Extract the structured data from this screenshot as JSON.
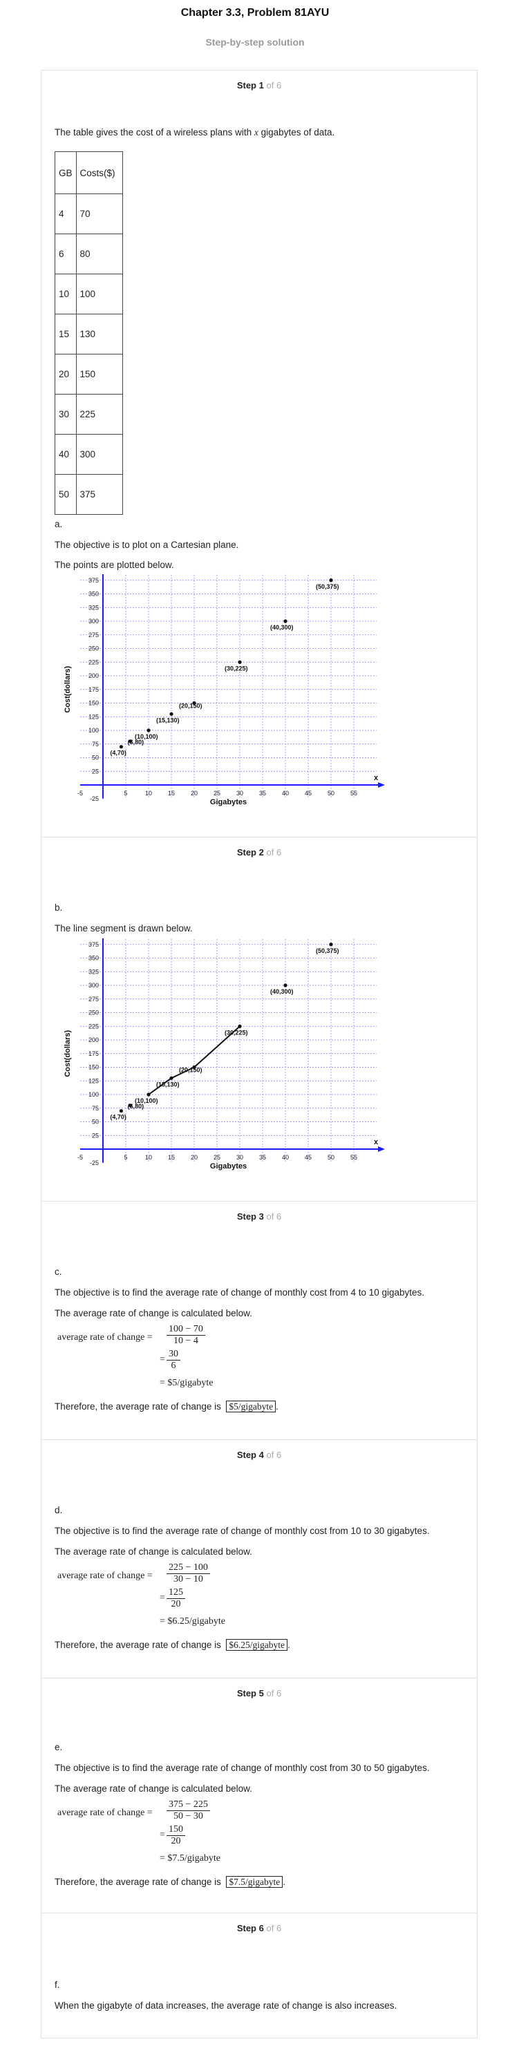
{
  "header": {
    "title": "Chapter 3.3, Problem 81AYU",
    "subtitle": "Step-by-step solution"
  },
  "step_word": "Step",
  "of_text": "of 6",
  "steps": [
    {
      "number": "1",
      "intro_pre": "The table gives the cost of a wireless plans with ",
      "intro_var": "x",
      "intro_post": " gigabytes of data.",
      "table_headers": [
        "GB",
        "Costs($)"
      ],
      "table_rows": [
        [
          "4",
          "70"
        ],
        [
          "6",
          "80"
        ],
        [
          "10",
          "100"
        ],
        [
          "15",
          "130"
        ],
        [
          "20",
          "150"
        ],
        [
          "30",
          "225"
        ],
        [
          "40",
          "300"
        ],
        [
          "50",
          "375"
        ]
      ],
      "label": "a.",
      "line1": "The objective is to plot on a Cartesian plane.",
      "line2": "The points are plotted below."
    },
    {
      "number": "2",
      "label": "b.",
      "line1": "The line segment is drawn below."
    },
    {
      "number": "3",
      "label": "c.",
      "line1": "The objective is to find the average rate of change of monthly cost from 4 to 10 gigabytes.",
      "line2": "The average rate of change is calculated below.",
      "lhs": "average rate of change =",
      "frac1_num": "100 − 70",
      "frac1_den": "10 − 4",
      "frac2_num": "30",
      "frac2_den": "6",
      "result": "= $5/gigabyte",
      "conclusion": "Therefore, the average rate of change is",
      "answer": "$5/gigabyte"
    },
    {
      "number": "4",
      "label": "d.",
      "line1": "The objective is to find the average rate of change of monthly cost from 10 to 30 gigabytes.",
      "line2": "The average rate of change is calculated below.",
      "lhs": "average rate of change =",
      "frac1_num": "225 − 100",
      "frac1_den": "30 − 10",
      "frac2_num": "125",
      "frac2_den": "20",
      "result": "= $6.25/gigabyte",
      "conclusion": "Therefore, the average rate of change is",
      "answer": "$6.25/gigabyte"
    },
    {
      "number": "5",
      "label": "e.",
      "line1": "The objective is to find the average rate of change of monthly cost from 30 to 50 gigabytes.",
      "line2": "The average rate of change is calculated below.",
      "lhs": "average rate of change =",
      "frac1_num": "375 − 225",
      "frac1_den": "50 − 30",
      "frac2_num": "150",
      "frac2_den": "20",
      "result": "= $7.5/gigabyte",
      "conclusion": "Therefore, the average rate of change is",
      "answer": "$7.5/gigabyte"
    },
    {
      "number": "6",
      "label": "f.",
      "line1": "When the gigabyte of data increases, the average rate of change is also increases."
    }
  ],
  "chart_data": [
    {
      "type": "scatter",
      "xlabel": "Gigabytes",
      "ylabel": "Cost(dollars)",
      "x_axis_name": "x",
      "y_axis_name": "y",
      "xlim": [
        -5,
        60
      ],
      "ylim": [
        -25,
        390
      ],
      "x_ticks": [
        -5,
        5,
        10,
        15,
        20,
        25,
        30,
        35,
        40,
        45,
        50,
        55
      ],
      "y_ticks": [
        -25,
        25,
        50,
        75,
        100,
        125,
        150,
        175,
        200,
        225,
        250,
        275,
        300,
        325,
        350,
        375
      ],
      "grid": true,
      "points": [
        {
          "x": 4,
          "y": 70,
          "label": "(4,70)"
        },
        {
          "x": 6,
          "y": 80,
          "label": "(6,80)"
        },
        {
          "x": 10,
          "y": 100,
          "label": "(10,100)"
        },
        {
          "x": 15,
          "y": 130,
          "label": "(15,130)"
        },
        {
          "x": 20,
          "y": 150,
          "label": "(20,150)"
        },
        {
          "x": 30,
          "y": 225,
          "label": "(30,225)"
        },
        {
          "x": 40,
          "y": 300,
          "label": "(40,300)"
        },
        {
          "x": 50,
          "y": 375,
          "label": "(50,375)"
        }
      ],
      "segment": null
    },
    {
      "type": "line",
      "xlabel": "Gigabytes",
      "ylabel": "Cost(dollars)",
      "x_axis_name": "x",
      "y_axis_name": "y",
      "xlim": [
        -5,
        60
      ],
      "ylim": [
        -25,
        390
      ],
      "x_ticks": [
        -5,
        5,
        10,
        15,
        20,
        25,
        30,
        35,
        40,
        45,
        50,
        55
      ],
      "y_ticks": [
        -25,
        25,
        50,
        75,
        100,
        125,
        150,
        175,
        200,
        225,
        250,
        275,
        300,
        325,
        350,
        375
      ],
      "grid": true,
      "points": [
        {
          "x": 4,
          "y": 70,
          "label": "(4,70)"
        },
        {
          "x": 6,
          "y": 80,
          "label": "(6,80)"
        },
        {
          "x": 10,
          "y": 100,
          "label": "(10,100)"
        },
        {
          "x": 15,
          "y": 130,
          "label": "(15,130)"
        },
        {
          "x": 20,
          "y": 150,
          "label": "(20,150)"
        },
        {
          "x": 30,
          "y": 225,
          "label": "(30,225)"
        },
        {
          "x": 40,
          "y": 300,
          "label": "(40,300)"
        },
        {
          "x": 50,
          "y": 375,
          "label": "(50,375)"
        }
      ],
      "segment": [
        [
          10,
          100
        ],
        [
          15,
          130
        ],
        [
          20,
          150
        ],
        [
          30,
          225
        ]
      ]
    }
  ]
}
